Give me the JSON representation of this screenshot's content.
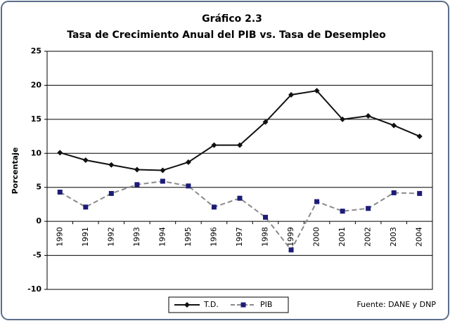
{
  "chart_data": {
    "type": "line",
    "title": "Gráfico 2.3",
    "subtitle": "Tasa de Crecimiento Anual del PIB vs. Tasa de Desempleo",
    "y_label": "Porcentaje",
    "note": "Fuente: DANE y DNP",
    "categories": [
      "1990",
      "1991",
      "1992",
      "1993",
      "1994",
      "1995",
      "1996",
      "1997",
      "1998",
      "1999",
      "2000",
      "2001",
      "2002",
      "2003",
      "2004"
    ],
    "series": [
      {
        "name": "T.D.",
        "color": "#111111",
        "line_color": "#111111",
        "dashed": false,
        "marker": "diamond",
        "values": [
          10.1,
          9.0,
          8.3,
          7.6,
          7.5,
          8.7,
          11.2,
          11.2,
          14.6,
          18.6,
          19.2,
          15.0,
          15.5,
          14.1,
          12.5
        ]
      },
      {
        "name": "PIB",
        "color": "#1c1c78",
        "line_color": "#8a8a8a",
        "dashed": true,
        "marker": "square",
        "values": [
          4.3,
          2.1,
          4.1,
          5.4,
          5.9,
          5.2,
          2.1,
          3.4,
          0.6,
          -4.2,
          2.9,
          1.5,
          1.9,
          4.2,
          4.1
        ]
      }
    ],
    "ylim": [
      -10,
      25
    ],
    "yticks": [
      -10,
      -5,
      0,
      5,
      10,
      15,
      20,
      25
    ],
    "grid": true,
    "legend": "bottom"
  }
}
